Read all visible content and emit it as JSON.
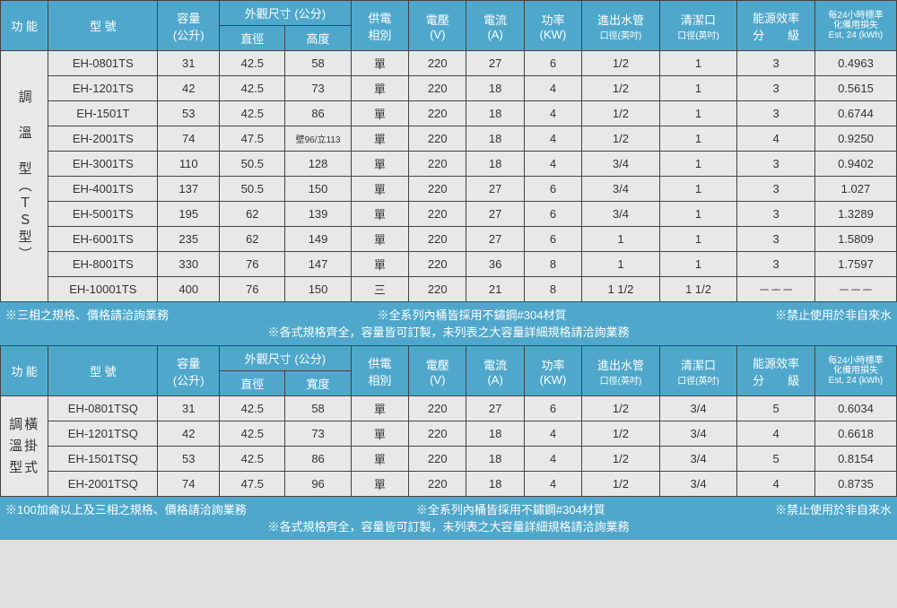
{
  "colors": {
    "header_bg": "#4fa8cc",
    "header_text": "#ffffff",
    "cell_bg": "#e8e8e8",
    "border": "#444444",
    "page_bg": "#e0e0e0"
  },
  "table1": {
    "headers": {
      "func": "功 能",
      "model": "型 號",
      "capacity": "容量",
      "capacity_unit": "(公升)",
      "dimensions": "外觀尺寸 (公分)",
      "dim_diameter": "直徑",
      "dim_height": "高度",
      "power_phase": "供電",
      "power_phase2": "相別",
      "voltage": "電壓",
      "voltage_unit": "(V)",
      "current": "電流",
      "current_unit": "(A)",
      "power": "功率",
      "power_unit": "(KW)",
      "pipe": "進出水管",
      "pipe_unit": "口徑(英吋)",
      "clean": "清潔口",
      "clean_unit": "口徑(英吋)",
      "efficiency": "能源效率",
      "efficiency_unit": "分　　級",
      "loss": "每24小時標準",
      "loss2": "化備用損失",
      "loss3": "Est, 24 (kWh)"
    },
    "category": "調 溫 型（ＴＳ型）",
    "rows": [
      {
        "model": "EH-0801TS",
        "cap": "31",
        "dia": "42.5",
        "h": "58",
        "phase": "單",
        "v": "220",
        "a": "27",
        "kw": "6",
        "pipe": "1/2",
        "clean": "1",
        "eff": "3",
        "loss": "0.4963"
      },
      {
        "model": "EH-1201TS",
        "cap": "42",
        "dia": "42.5",
        "h": "73",
        "phase": "單",
        "v": "220",
        "a": "18",
        "kw": "4",
        "pipe": "1/2",
        "clean": "1",
        "eff": "3",
        "loss": "0.5615"
      },
      {
        "model": "EH-1501T",
        "cap": "53",
        "dia": "42.5",
        "h": "86",
        "phase": "單",
        "v": "220",
        "a": "18",
        "kw": "4",
        "pipe": "1/2",
        "clean": "1",
        "eff": "3",
        "loss": "0.6744"
      },
      {
        "model": "EH-2001TS",
        "cap": "74",
        "dia": "47.5",
        "h": "壁96/立113",
        "phase": "單",
        "v": "220",
        "a": "18",
        "kw": "4",
        "pipe": "1/2",
        "clean": "1",
        "eff": "4",
        "loss": "0.9250"
      },
      {
        "model": "EH-3001TS",
        "cap": "110",
        "dia": "50.5",
        "h": "128",
        "phase": "單",
        "v": "220",
        "a": "18",
        "kw": "4",
        "pipe": "3/4",
        "clean": "1",
        "eff": "3",
        "loss": "0.9402"
      },
      {
        "model": "EH-4001TS",
        "cap": "137",
        "dia": "50.5",
        "h": "150",
        "phase": "單",
        "v": "220",
        "a": "27",
        "kw": "6",
        "pipe": "3/4",
        "clean": "1",
        "eff": "3",
        "loss": "1.027"
      },
      {
        "model": "EH-5001TS",
        "cap": "195",
        "dia": "62",
        "h": "139",
        "phase": "單",
        "v": "220",
        "a": "27",
        "kw": "6",
        "pipe": "3/4",
        "clean": "1",
        "eff": "3",
        "loss": "1.3289"
      },
      {
        "model": "EH-6001TS",
        "cap": "235",
        "dia": "62",
        "h": "149",
        "phase": "單",
        "v": "220",
        "a": "27",
        "kw": "6",
        "pipe": "1",
        "clean": "1",
        "eff": "3",
        "loss": "1.5809"
      },
      {
        "model": "EH-8001TS",
        "cap": "330",
        "dia": "76",
        "h": "147",
        "phase": "單",
        "v": "220",
        "a": "36",
        "kw": "8",
        "pipe": "1",
        "clean": "1",
        "eff": "3",
        "loss": "1.7597"
      },
      {
        "model": "EH-10001TS",
        "cap": "400",
        "dia": "76",
        "h": "150",
        "phase": "三",
        "v": "220",
        "a": "21",
        "kw": "8",
        "pipe": "1 1/2",
        "clean": "1 1/2",
        "eff": "－－－",
        "loss": "－－－"
      }
    ],
    "notes": {
      "n1": "※三相之規格、價格請洽詢業務",
      "n2": "※全系列內桶皆採用不鏽鋼#304材質",
      "n3": "※禁止使用於非自來水",
      "n4": "※各式規格齊全，容量皆可訂製，未列表之大容量詳細規格請洽詢業務"
    }
  },
  "table2": {
    "headers": {
      "func": "功 能",
      "model": "型 號",
      "capacity": "容量",
      "capacity_unit": "(公升)",
      "dimensions": "外觀尺寸 (公分)",
      "dim_diameter": "直徑",
      "dim_width": "寬度",
      "power_phase": "供電",
      "power_phase2": "相別",
      "voltage": "電壓",
      "voltage_unit": "(V)",
      "current": "電流",
      "current_unit": "(A)",
      "power": "功率",
      "power_unit": "(KW)",
      "pipe": "進出水管",
      "pipe_unit": "口徑(英吋)",
      "clean": "清潔口",
      "clean_unit": "口徑(英吋)",
      "efficiency": "能源效率",
      "efficiency_unit": "分　　級",
      "loss": "每24小時標準",
      "loss2": "化備用損失",
      "loss3": "Est, 24 (kWh)"
    },
    "category": "調橫\n溫掛\n型式",
    "rows": [
      {
        "model": "EH-0801TSQ",
        "cap": "31",
        "dia": "42.5",
        "w": "58",
        "phase": "單",
        "v": "220",
        "a": "27",
        "kw": "6",
        "pipe": "1/2",
        "clean": "3/4",
        "eff": "5",
        "loss": "0.6034"
      },
      {
        "model": "EH-1201TSQ",
        "cap": "42",
        "dia": "42.5",
        "w": "73",
        "phase": "單",
        "v": "220",
        "a": "18",
        "kw": "4",
        "pipe": "1/2",
        "clean": "3/4",
        "eff": "4",
        "loss": "0.6618"
      },
      {
        "model": "EH-1501TSQ",
        "cap": "53",
        "dia": "42.5",
        "w": "86",
        "phase": "單",
        "v": "220",
        "a": "18",
        "kw": "4",
        "pipe": "1/2",
        "clean": "3/4",
        "eff": "5",
        "loss": "0.8154"
      },
      {
        "model": "EH-2001TSQ",
        "cap": "74",
        "dia": "47.5",
        "w": "96",
        "phase": "單",
        "v": "220",
        "a": "18",
        "kw": "4",
        "pipe": "1/2",
        "clean": "3/4",
        "eff": "4",
        "loss": "0.8735"
      }
    ],
    "notes": {
      "n1": "※100加侖以上及三相之規格、價格請洽詢業務",
      "n2": "※全系列內桶皆採用不鏽鋼#304材質",
      "n3": "※禁止使用於非自來水",
      "n4": "※各式規格齊全，容量皆可訂製，未列表之大容量詳細規格請洽詢業務"
    }
  }
}
